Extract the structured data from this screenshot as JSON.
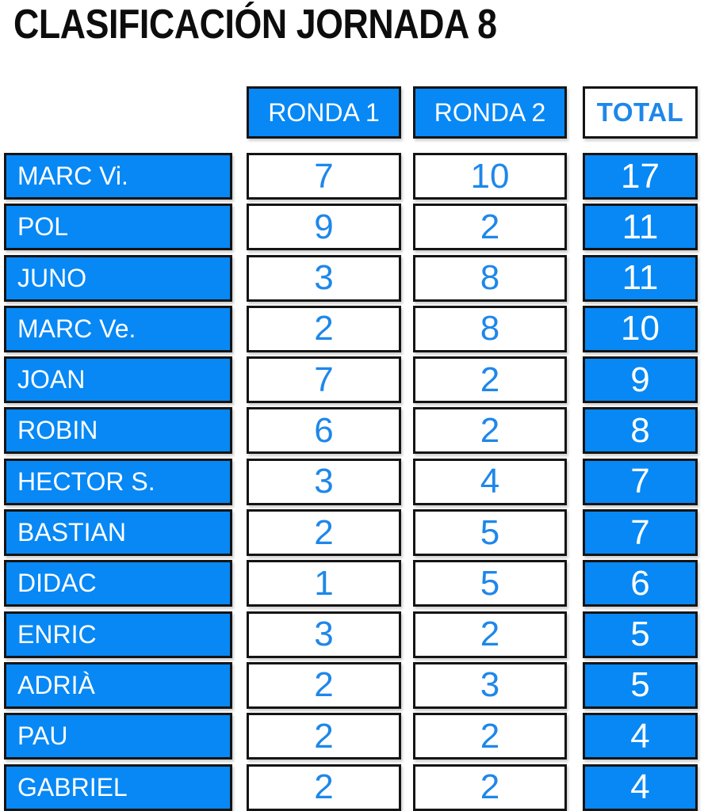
{
  "title": "CLASIFICACIÓN JORNADA 8",
  "colors": {
    "blue_fill": "#0788f5",
    "blue_text": "#1e87ea",
    "border": "#141414",
    "title_text": "#0d0d0d",
    "header_text_on_blue": "#ffffff"
  },
  "table": {
    "column_headers": [
      "RONDA 1",
      "RONDA 2",
      "TOTAL"
    ],
    "rows": [
      {
        "name": "MARC Vi.",
        "ronda1": "7",
        "ronda2": "10",
        "total": "17"
      },
      {
        "name": "POL",
        "ronda1": "9",
        "ronda2": "2",
        "total": "11"
      },
      {
        "name": "JUNO",
        "ronda1": "3",
        "ronda2": "8",
        "total": "11"
      },
      {
        "name": "MARC Ve.",
        "ronda1": "2",
        "ronda2": "8",
        "total": "10"
      },
      {
        "name": "JOAN",
        "ronda1": "7",
        "ronda2": "2",
        "total": "9"
      },
      {
        "name": "ROBIN",
        "ronda1": "6",
        "ronda2": "2",
        "total": "8"
      },
      {
        "name": "HECTOR S.",
        "ronda1": "3",
        "ronda2": "4",
        "total": "7"
      },
      {
        "name": "BASTIAN",
        "ronda1": "2",
        "ronda2": "5",
        "total": "7"
      },
      {
        "name": "DIDAC",
        "ronda1": "1",
        "ronda2": "5",
        "total": "6"
      },
      {
        "name": "ENRIC",
        "ronda1": "3",
        "ronda2": "2",
        "total": "5"
      },
      {
        "name": "ADRIÀ",
        "ronda1": "2",
        "ronda2": "3",
        "total": "5"
      },
      {
        "name": "PAU",
        "ronda1": "2",
        "ronda2": "2",
        "total": "4"
      },
      {
        "name": "GABRIEL",
        "ronda1": "2",
        "ronda2": "2",
        "total": "4"
      }
    ]
  }
}
